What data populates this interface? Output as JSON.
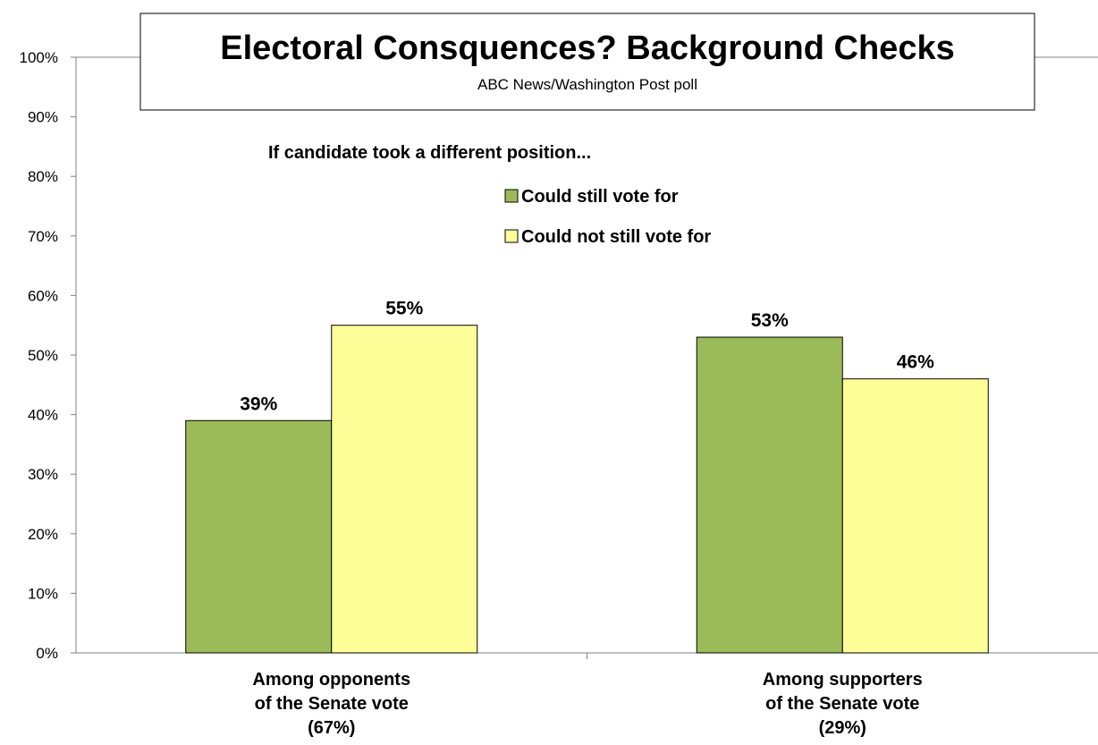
{
  "chart_data": {
    "type": "bar",
    "title": "Electoral Consquences? Background Checks",
    "subtitle": "ABC News/Washington Post poll",
    "legend_title": "If candidate took a different position...",
    "categories": [
      [
        "Among opponents",
        "of the Senate vote",
        "(67%)"
      ],
      [
        "Among supporters",
        "of the Senate vote",
        "(29%)"
      ]
    ],
    "series": [
      {
        "name": "Could still vote for",
        "values": [
          39,
          53
        ],
        "labels": [
          "39%",
          "53%"
        ]
      },
      {
        "name": "Could not still vote for",
        "values": [
          55,
          46
        ],
        "labels": [
          "55%",
          "46%"
        ]
      }
    ],
    "yticks": [
      "0%",
      "10%",
      "20%",
      "30%",
      "40%",
      "50%",
      "60%",
      "70%",
      "80%",
      "90%",
      "100%"
    ],
    "ylim": [
      0,
      100
    ],
    "grid": false,
    "legend_position": "top-center",
    "colors": {
      "series": [
        "#9bbb59",
        "#ffff99"
      ],
      "bar_stroke": "#000000",
      "axis": "#808080"
    }
  }
}
